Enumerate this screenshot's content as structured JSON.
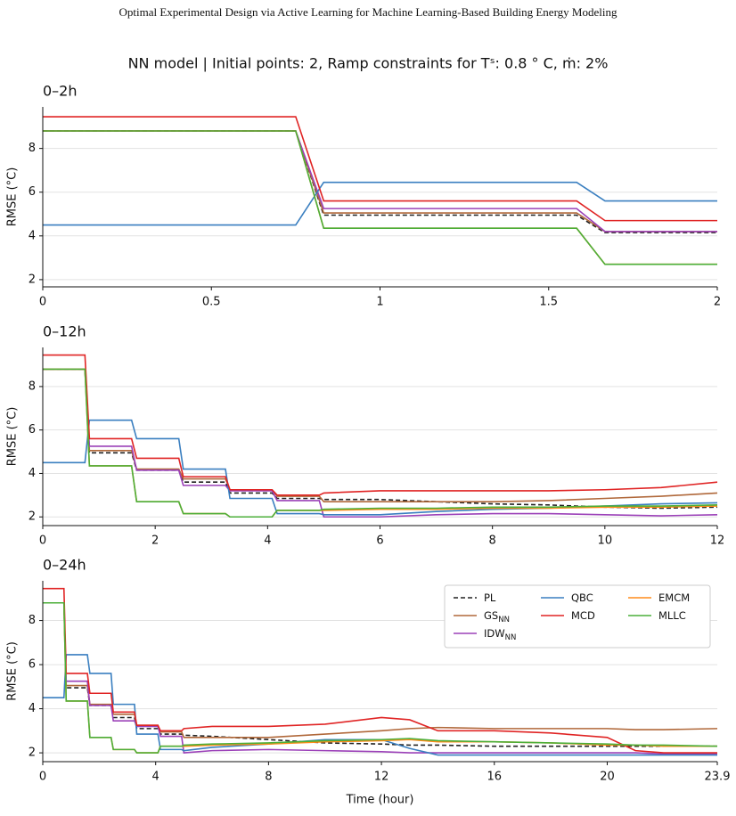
{
  "header": "Optimal Experimental Design via Active Learning for Machine Learning-Based Building Energy Modeling",
  "title": "NN model  |  Initial points: 2,  Ramp constraints for Tˢ: 0.8 ° C, ṁ: 2%",
  "chart_data": [
    {
      "type": "line",
      "title": "0–2h",
      "ylabel": "RMSE (°C)",
      "x": [
        0,
        0.75,
        0.833,
        1.583,
        1.667,
        2
      ],
      "xlim": [
        0,
        2
      ],
      "xticks": [
        0,
        0.5,
        1,
        1.5,
        2
      ],
      "ylim": [
        1.67,
        9.9
      ],
      "yticks": [
        2,
        4,
        6,
        8
      ],
      "grid": true,
      "series": [
        {
          "color": "#222222",
          "style": "dashed",
          "values": [
            8.8,
            8.8,
            4.95,
            4.95,
            4.15,
            4.15
          ]
        },
        {
          "color": "#b0683a",
          "style": "solid",
          "values": [
            8.8,
            8.8,
            5.05,
            5.05,
            4.2,
            4.2
          ]
        },
        {
          "color": "#9b40b8",
          "style": "solid",
          "values": [
            8.8,
            8.8,
            5.25,
            5.25,
            4.2,
            4.2
          ]
        },
        {
          "color": "#3a7fc0",
          "style": "solid",
          "values": [
            4.5,
            4.5,
            6.45,
            6.45,
            5.6,
            5.6
          ]
        },
        {
          "color": "#e02424",
          "style": "solid",
          "values": [
            9.45,
            9.45,
            5.6,
            5.6,
            4.7,
            4.7
          ]
        },
        {
          "color": "#ff8c1a",
          "style": "solid",
          "values": [
            8.8,
            8.8,
            4.35,
            4.35,
            2.7,
            2.7
          ]
        },
        {
          "color": "#4caf3a",
          "style": "solid",
          "values": [
            8.8,
            8.8,
            4.35,
            4.35,
            2.7,
            2.7
          ]
        }
      ]
    },
    {
      "type": "line",
      "title": "0–12h",
      "ylabel": "RMSE (°C)",
      "x": [
        0,
        0.75,
        0.83,
        1.58,
        1.67,
        2.42,
        2.5,
        3.25,
        3.33,
        4.08,
        4.17,
        4.92,
        5,
        6,
        7,
        8,
        9,
        10,
        11,
        12
      ],
      "xlim": [
        0,
        12
      ],
      "xticks": [
        0,
        2,
        4,
        6,
        8,
        10,
        12
      ],
      "ylim": [
        1.6,
        9.8
      ],
      "yticks": [
        2,
        4,
        6,
        8
      ],
      "grid": true,
      "series": [
        {
          "color": "#222222",
          "style": "dashed",
          "values": [
            8.8,
            8.8,
            4.95,
            4.95,
            4.15,
            4.15,
            3.6,
            3.6,
            3.1,
            3.1,
            2.85,
            2.85,
            2.8,
            2.8,
            2.7,
            2.6,
            2.55,
            2.45,
            2.4,
            2.45
          ]
        },
        {
          "color": "#b0683a",
          "style": "solid",
          "values": [
            8.8,
            8.8,
            5.05,
            5.05,
            4.2,
            4.2,
            3.75,
            3.75,
            3.25,
            3.25,
            2.95,
            2.95,
            2.7,
            2.7,
            2.7,
            2.7,
            2.75,
            2.85,
            2.95,
            3.1
          ]
        },
        {
          "color": "#9b40b8",
          "style": "solid",
          "values": [
            8.8,
            8.8,
            5.25,
            5.25,
            4.15,
            4.15,
            3.45,
            3.45,
            3.2,
            3.2,
            2.75,
            2.75,
            2.0,
            2.0,
            2.1,
            2.15,
            2.15,
            2.1,
            2.05,
            2.1
          ]
        },
        {
          "color": "#3a7fc0",
          "style": "solid",
          "values": [
            4.5,
            4.5,
            6.45,
            6.45,
            5.6,
            5.6,
            4.2,
            4.2,
            2.85,
            2.85,
            2.15,
            2.15,
            2.1,
            2.1,
            2.25,
            2.35,
            2.4,
            2.5,
            2.6,
            2.65
          ]
        },
        {
          "color": "#e02424",
          "style": "solid",
          "values": [
            9.45,
            9.45,
            5.6,
            5.6,
            4.7,
            4.7,
            3.85,
            3.85,
            3.25,
            3.25,
            3.0,
            3.0,
            3.1,
            3.2,
            3.2,
            3.2,
            3.2,
            3.25,
            3.35,
            3.6
          ]
        },
        {
          "color": "#ff8c1a",
          "style": "solid",
          "values": [
            8.8,
            8.8,
            4.35,
            4.35,
            2.7,
            2.7,
            2.15,
            2.15,
            2.0,
            2.0,
            2.3,
            2.3,
            2.3,
            2.35,
            2.35,
            2.4,
            2.4,
            2.45,
            2.45,
            2.5
          ]
        },
        {
          "color": "#4caf3a",
          "style": "solid",
          "values": [
            8.8,
            8.8,
            4.35,
            4.35,
            2.7,
            2.7,
            2.15,
            2.15,
            2.0,
            2.0,
            2.3,
            2.3,
            2.35,
            2.4,
            2.4,
            2.45,
            2.45,
            2.5,
            2.5,
            2.55
          ]
        }
      ]
    },
    {
      "type": "line",
      "title": "0–24h",
      "ylabel": "RMSE (°C)",
      "xlabel": "Time (hour)",
      "x": [
        0,
        0.75,
        0.83,
        1.58,
        1.67,
        2.42,
        2.5,
        3.25,
        3.33,
        4.08,
        4.17,
        4.92,
        5,
        6,
        8,
        10,
        12,
        13,
        14,
        16,
        18,
        20,
        21,
        22,
        23.9
      ],
      "xlim": [
        0,
        23.9
      ],
      "xticks": [
        0,
        4,
        8,
        12,
        16,
        20,
        23.9
      ],
      "ylim": [
        1.6,
        9.8
      ],
      "yticks": [
        2,
        4,
        6,
        8
      ],
      "grid": true,
      "legend": "upper right",
      "series": [
        {
          "name": "PL",
          "color": "#222222",
          "style": "dashed",
          "values": [
            8.8,
            8.8,
            4.95,
            4.95,
            4.15,
            4.15,
            3.6,
            3.6,
            3.1,
            3.1,
            2.85,
            2.85,
            2.8,
            2.75,
            2.6,
            2.45,
            2.4,
            2.35,
            2.35,
            2.3,
            2.3,
            2.3,
            2.3,
            2.3,
            2.3
          ]
        },
        {
          "name": "GS",
          "subscript": "NN",
          "color": "#b0683a",
          "style": "solid",
          "values": [
            8.8,
            8.8,
            5.05,
            5.05,
            4.2,
            4.2,
            3.75,
            3.75,
            3.25,
            3.25,
            2.95,
            2.95,
            2.7,
            2.7,
            2.7,
            2.85,
            3.0,
            3.1,
            3.15,
            3.1,
            3.1,
            3.1,
            3.05,
            3.05,
            3.1
          ]
        },
        {
          "name": "IDW",
          "subscript": "NN",
          "color": "#9b40b8",
          "style": "solid",
          "values": [
            8.8,
            8.8,
            5.25,
            5.25,
            4.15,
            4.15,
            3.45,
            3.45,
            3.2,
            3.2,
            2.75,
            2.75,
            2.0,
            2.1,
            2.15,
            2.1,
            2.05,
            2.0,
            2.0,
            2.0,
            2.0,
            2.0,
            2.0,
            1.95,
            1.95
          ]
        },
        {
          "name": "QBC",
          "color": "#3a7fc0",
          "style": "solid",
          "values": [
            4.5,
            4.5,
            6.45,
            6.45,
            5.6,
            5.6,
            4.2,
            4.2,
            2.85,
            2.85,
            2.15,
            2.15,
            2.1,
            2.25,
            2.4,
            2.6,
            2.6,
            2.2,
            1.9,
            1.9,
            1.9,
            1.9,
            1.9,
            1.9,
            1.9
          ]
        },
        {
          "name": "MCD",
          "color": "#e02424",
          "style": "solid",
          "values": [
            9.45,
            9.45,
            5.6,
            5.6,
            4.7,
            4.7,
            3.85,
            3.85,
            3.25,
            3.25,
            3.0,
            3.0,
            3.1,
            3.2,
            3.2,
            3.3,
            3.6,
            3.5,
            3.0,
            3.0,
            2.9,
            2.7,
            2.1,
            2.0,
            2.0
          ]
        },
        {
          "name": "EMCM",
          "color": "#ff8c1a",
          "style": "solid",
          "values": [
            8.8,
            8.8,
            4.35,
            4.35,
            2.7,
            2.7,
            2.15,
            2.15,
            2.0,
            2.0,
            2.3,
            2.3,
            2.3,
            2.35,
            2.4,
            2.5,
            2.55,
            2.6,
            2.5,
            2.5,
            2.45,
            2.35,
            2.35,
            2.3,
            2.3
          ]
        },
        {
          "name": "MLLC",
          "color": "#4caf3a",
          "style": "solid",
          "values": [
            8.8,
            8.8,
            4.35,
            4.35,
            2.7,
            2.7,
            2.15,
            2.15,
            2.0,
            2.0,
            2.3,
            2.3,
            2.35,
            2.4,
            2.45,
            2.55,
            2.6,
            2.65,
            2.55,
            2.5,
            2.45,
            2.4,
            2.35,
            2.35,
            2.3
          ]
        }
      ]
    }
  ]
}
